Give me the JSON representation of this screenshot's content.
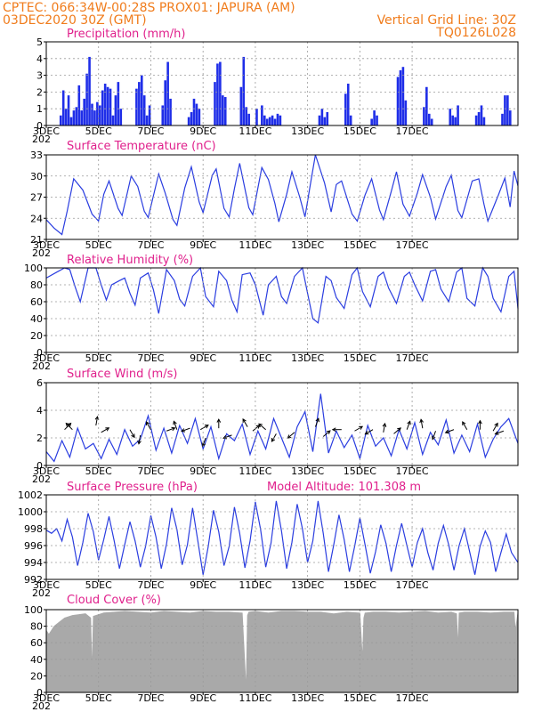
{
  "header": {
    "line1_left": "CPTEC:   066:34W-00:28S   PROX01: JAPURA (AM)",
    "line2_left": "03DEC2020 30Z (GMT)",
    "line1_right": "Vertical Grid Line: 30Z",
    "line2_right": "TQ0126L028"
  },
  "x_axis": {
    "tick_labels": [
      "3DEC",
      "5DEC",
      "7DEC",
      "9DEC",
      "11DEC",
      "13DEC",
      "15DEC",
      "17DEC"
    ],
    "year_fragment": "202"
  },
  "colors": {
    "line": "#2a3de0",
    "bar": "#1f2ee8",
    "cloud": "#a9a9a9",
    "header": "#f07c1c",
    "title": "#e0208c"
  },
  "chart_data": [
    {
      "type": "bar",
      "title": "Precipitation (mm/h)",
      "ylim": [
        0,
        5
      ],
      "y_ticks": [
        "0",
        "1",
        "2",
        "3",
        "4",
        "5"
      ],
      "grid": true,
      "x_days": [
        0.55,
        0.65,
        0.75,
        0.85,
        0.95,
        1.05,
        1.15,
        1.25,
        1.35,
        1.45,
        1.55,
        1.65,
        1.75,
        1.85,
        1.95,
        2.05,
        2.15,
        2.25,
        2.35,
        2.45,
        2.55,
        2.65,
        2.75,
        2.85,
        3.45,
        3.55,
        3.65,
        3.75,
        3.85,
        3.95,
        4.45,
        4.55,
        4.65,
        4.75,
        5.45,
        5.55,
        5.65,
        5.75,
        5.85,
        6.45,
        6.55,
        6.65,
        6.75,
        6.85,
        7.45,
        7.55,
        7.65,
        7.75,
        8.05,
        8.25,
        8.35,
        8.45,
        8.55,
        8.65,
        8.75,
        8.85,
        8.95,
        10.45,
        10.55,
        10.65,
        10.75,
        11.45,
        11.55,
        11.65,
        12.45,
        12.55,
        12.65,
        13.45,
        13.55,
        13.65,
        13.75,
        14.45,
        14.55,
        14.65,
        14.75,
        15.45,
        15.55,
        15.65,
        15.75,
        16.45,
        16.55,
        16.65,
        16.75,
        17.45,
        17.55,
        17.65,
        17.75
      ],
      "values": [
        0.6,
        2.1,
        1.0,
        1.8,
        0.5,
        0.9,
        1.1,
        2.4,
        0.9,
        1.6,
        3.1,
        4.1,
        1.3,
        0.9,
        1.4,
        1.2,
        2.1,
        2.5,
        2.3,
        2.2,
        0.6,
        1.8,
        2.6,
        1.0,
        2.2,
        2.6,
        3.0,
        1.8,
        0.6,
        1.2,
        1.2,
        2.7,
        3.8,
        1.6,
        0.5,
        0.8,
        1.6,
        1.3,
        1.0,
        2.6,
        3.7,
        3.8,
        1.8,
        1.7,
        2.3,
        4.1,
        1.1,
        0.7,
        1.0,
        1.2,
        0.6,
        0.4,
        0.5,
        0.6,
        0.4,
        0.7,
        0.6,
        0.6,
        1.0,
        0.5,
        0.8,
        1.9,
        2.5,
        0.6,
        0.4,
        0.9,
        0.6,
        2.9,
        3.3,
        3.5,
        1.5,
        1.1,
        2.3,
        0.7,
        0.4,
        1.0,
        0.6,
        0.5,
        1.2,
        0.6,
        0.8,
        1.2,
        0.5,
        0.7,
        1.8,
        1.8,
        0.9
      ]
    },
    {
      "type": "line",
      "title": "Surface Temperature (nC)",
      "ylim": [
        21,
        33
      ],
      "y_ticks": [
        "21",
        "24",
        "27",
        "30",
        "33"
      ],
      "grid": true,
      "x_days": [
        0.0,
        0.3,
        0.6,
        0.8,
        1.05,
        1.4,
        1.75,
        2.0,
        2.2,
        2.4,
        2.75,
        2.9,
        3.25,
        3.5,
        3.75,
        3.9,
        4.3,
        4.55,
        4.85,
        5.0,
        5.3,
        5.55,
        5.85,
        6.0,
        6.35,
        6.5,
        6.8,
        7.0,
        7.2,
        7.4,
        7.75,
        7.9,
        8.25,
        8.5,
        8.75,
        8.9,
        9.2,
        9.4,
        9.7,
        9.9,
        10.1,
        10.3,
        10.65,
        10.9,
        11.1,
        11.3,
        11.7,
        11.9,
        12.2,
        12.45,
        12.75,
        12.9,
        13.2,
        13.4,
        13.65,
        13.9,
        14.2,
        14.4,
        14.7,
        14.9,
        15.3,
        15.5,
        15.75,
        15.9,
        16.3,
        16.55,
        16.75,
        16.9,
        17.3,
        17.55,
        17.75,
        17.9,
        18.05
      ],
      "values": [
        23.8,
        22.6,
        21.7,
        25.0,
        29.6,
        28.0,
        24.6,
        23.6,
        27.4,
        29.3,
        25.4,
        24.4,
        30.0,
        28.5,
        25.0,
        24.1,
        30.3,
        27.6,
        23.8,
        23.0,
        28.3,
        31.3,
        26.3,
        24.8,
        30.1,
        31.0,
        25.4,
        24.2,
        28.2,
        31.8,
        25.5,
        24.5,
        31.2,
        29.5,
        26.1,
        23.5,
        27.4,
        30.6,
        27.0,
        24.2,
        28.7,
        33.0,
        29.0,
        24.9,
        28.8,
        29.3,
        24.6,
        23.6,
        27.3,
        29.6,
        25.2,
        23.8,
        27.8,
        30.6,
        26.0,
        24.3,
        27.6,
        30.2,
        27.0,
        23.9,
        28.5,
        30.1,
        25.1,
        24.1,
        29.3,
        29.6,
        26.0,
        23.6,
        27.3,
        29.7,
        25.6,
        30.7,
        28.6
      ]
    },
    {
      "type": "line",
      "title": "Relative Humidity (%)",
      "ylim": [
        0,
        100
      ],
      "y_ticks": [
        "0",
        "20",
        "40",
        "60",
        "80",
        "100"
      ],
      "grid": true,
      "x_days": [
        0.0,
        0.4,
        0.7,
        0.9,
        1.1,
        1.3,
        1.6,
        1.9,
        2.1,
        2.3,
        2.5,
        2.8,
        3.0,
        3.2,
        3.4,
        3.6,
        3.9,
        4.1,
        4.3,
        4.6,
        4.9,
        5.1,
        5.3,
        5.6,
        5.9,
        6.1,
        6.4,
        6.6,
        6.9,
        7.1,
        7.3,
        7.5,
        7.8,
        8.0,
        8.3,
        8.5,
        8.8,
        9.0,
        9.2,
        9.5,
        9.8,
        10.0,
        10.2,
        10.4,
        10.7,
        10.9,
        11.1,
        11.4,
        11.7,
        11.9,
        12.1,
        12.4,
        12.7,
        12.9,
        13.1,
        13.4,
        13.7,
        13.9,
        14.1,
        14.4,
        14.7,
        14.9,
        15.1,
        15.4,
        15.7,
        15.9,
        16.1,
        16.4,
        16.7,
        16.9,
        17.1,
        17.4,
        17.7,
        17.9,
        18.05
      ],
      "values": [
        88,
        95,
        100,
        98,
        78,
        60,
        100,
        100,
        80,
        62,
        80,
        85,
        88,
        70,
        56,
        88,
        94,
        74,
        46,
        98,
        85,
        63,
        55,
        90,
        100,
        66,
        54,
        96,
        85,
        62,
        48,
        92,
        94,
        80,
        44,
        80,
        90,
        66,
        58,
        90,
        100,
        70,
        40,
        35,
        90,
        85,
        65,
        52,
        92,
        100,
        72,
        54,
        90,
        95,
        76,
        58,
        90,
        95,
        80,
        61,
        96,
        98,
        75,
        60,
        95,
        100,
        64,
        55,
        100,
        90,
        64,
        48,
        90,
        96,
        52
      ]
    },
    {
      "type": "line",
      "title": "Surface Wind (m/s)",
      "ylim": [
        0,
        6
      ],
      "y_ticks": [
        "0",
        "2",
        "4",
        "6"
      ],
      "grid": true,
      "x_days": [
        0.0,
        0.3,
        0.6,
        0.9,
        1.2,
        1.5,
        1.8,
        2.1,
        2.4,
        2.7,
        3.0,
        3.3,
        3.6,
        3.9,
        4.2,
        4.5,
        4.8,
        5.1,
        5.4,
        5.7,
        6.0,
        6.3,
        6.6,
        6.9,
        7.2,
        7.5,
        7.8,
        8.1,
        8.4,
        8.7,
        9.0,
        9.3,
        9.6,
        9.9,
        10.2,
        10.5,
        10.8,
        11.1,
        11.4,
        11.7,
        12.0,
        12.3,
        12.6,
        12.9,
        13.2,
        13.5,
        13.8,
        14.1,
        14.4,
        14.7,
        15.0,
        15.3,
        15.6,
        15.9,
        16.2,
        16.5,
        16.8,
        17.1,
        17.4,
        17.7,
        18.05
      ],
      "values": [
        1.0,
        0.3,
        1.8,
        0.6,
        2.7,
        1.2,
        1.6,
        0.5,
        1.9,
        0.8,
        2.6,
        1.4,
        1.9,
        3.6,
        1.1,
        2.7,
        0.9,
        2.9,
        1.6,
        3.4,
        1.2,
        2.8,
        0.5,
        2.3,
        1.8,
        3.0,
        0.8,
        2.5,
        1.2,
        3.4,
        2.0,
        0.6,
        2.8,
        3.9,
        1.0,
        5.2,
        0.9,
        2.5,
        1.3,
        2.2,
        0.5,
        2.9,
        1.4,
        2.0,
        0.7,
        2.6,
        1.2,
        3.1,
        0.8,
        2.4,
        1.5,
        3.3,
        0.9,
        2.2,
        1.0,
        3.0,
        0.6,
        1.9,
        2.8,
        3.4,
        1.6
      ],
      "arrows_x_days": [
        0.7,
        1.0,
        1.9,
        2.1,
        3.2,
        3.6,
        4.0,
        4.6,
        5.0,
        5.5,
        5.9,
        6.1,
        6.6,
        7.1,
        7.7,
        7.9,
        8.4,
        8.8,
        9.5,
        10.3,
        10.6,
        11.3,
        11.8,
        12.5,
        12.9,
        13.3,
        13.8,
        14.4,
        14.9,
        15.6,
        16.1,
        16.6,
        17.1,
        17.5
      ],
      "arrows_y": [
        2.6,
        2.6,
        2.9,
        2.4,
        2.6,
        2.2,
        2.6,
        2.5,
        2.6,
        2.7,
        2.6,
        2.0,
        2.7,
        2.2,
        2.8,
        2.5,
        2.6,
        2.3,
        2.4,
        2.8,
        2.1,
        2.6,
        2.5,
        2.6,
        2.4,
        2.3,
        2.6,
        2.7,
        2.5,
        2.6,
        2.6,
        2.6,
        2.5,
        2.5
      ],
      "arrows_dir_deg": [
        45,
        135,
        80,
        30,
        -60,
        260,
        120,
        20,
        110,
        200,
        30,
        250,
        90,
        200,
        120,
        40,
        140,
        240,
        220,
        70,
        40,
        180,
        30,
        210,
        80,
        40,
        70,
        100,
        250,
        200,
        120,
        90,
        60,
        200
      ]
    },
    {
      "type": "line",
      "title": "Surface Pressure (hPa)",
      "annotation": "Model Altitude: 101.308  m",
      "ylim": [
        992,
        1003
      ],
      "y_ticks": [
        "992",
        "994",
        "996",
        "998",
        "1000",
        "1002"
      ],
      "grid": true,
      "x_days": [
        0.0,
        0.2,
        0.4,
        0.6,
        0.8,
        1.0,
        1.2,
        1.4,
        1.6,
        1.8,
        2.0,
        2.2,
        2.4,
        2.6,
        2.8,
        3.0,
        3.2,
        3.4,
        3.6,
        3.8,
        4.0,
        4.2,
        4.4,
        4.6,
        4.8,
        5.0,
        5.2,
        5.4,
        5.6,
        5.8,
        6.0,
        6.2,
        6.4,
        6.6,
        6.8,
        7.0,
        7.2,
        7.4,
        7.6,
        7.8,
        8.0,
        8.2,
        8.4,
        8.6,
        8.8,
        9.0,
        9.2,
        9.4,
        9.6,
        9.8,
        10.0,
        10.2,
        10.4,
        10.6,
        10.8,
        11.0,
        11.2,
        11.4,
        11.6,
        11.8,
        12.0,
        12.2,
        12.4,
        12.6,
        12.8,
        13.0,
        13.2,
        13.4,
        13.6,
        13.8,
        14.0,
        14.2,
        14.4,
        14.6,
        14.8,
        15.0,
        15.2,
        15.4,
        15.6,
        15.8,
        16.0,
        16.2,
        16.4,
        16.6,
        16.8,
        17.0,
        17.2,
        17.4,
        17.6,
        17.8,
        18.05
      ],
      "values": [
        998.4,
        998.0,
        998.6,
        997.0,
        999.8,
        997.5,
        993.8,
        996.8,
        1000.6,
        998.2,
        994.5,
        997.2,
        1000.2,
        997.0,
        993.4,
        996.5,
        999.5,
        997.0,
        993.6,
        996.3,
        1000.3,
        997.5,
        993.4,
        996.6,
        1001.3,
        998.5,
        993.9,
        996.5,
        1001.3,
        997.0,
        992.6,
        996.3,
        1001.0,
        998.2,
        993.8,
        996.3,
        1001.4,
        998.0,
        993.5,
        997.0,
        1002.1,
        998.5,
        993.6,
        996.7,
        1002.2,
        998.3,
        993.4,
        996.8,
        1001.8,
        998.6,
        994.2,
        997.0,
        1002.2,
        998.0,
        993.0,
        996.5,
        1000.4,
        997.2,
        993.0,
        996.3,
        1000.0,
        996.5,
        992.8,
        995.6,
        999.1,
        996.7,
        993.0,
        996.4,
        999.3,
        996.4,
        993.6,
        996.8,
        998.6,
        995.5,
        993.2,
        996.7,
        999.0,
        996.5,
        993.2,
        996.4,
        998.6,
        995.6,
        992.6,
        996.3,
        998.3,
        996.8,
        993.0,
        995.5,
        997.9,
        995.5,
        994.2
      ]
    },
    {
      "type": "area",
      "title": "Cloud Cover (%)",
      "ylim": [
        0,
        100
      ],
      "y_ticks": [
        "0",
        "20",
        "40",
        "60",
        "80",
        "100"
      ],
      "grid": true,
      "x_days": [
        0.0,
        0.1,
        0.3,
        0.5,
        0.7,
        1.0,
        1.5,
        1.7,
        1.75,
        1.8,
        2.2,
        2.6,
        3.0,
        3.5,
        4.0,
        4.5,
        5.0,
        5.5,
        6.0,
        6.5,
        7.0,
        7.5,
        7.65,
        7.7,
        7.75,
        8.0,
        8.5,
        9.0,
        9.5,
        10.0,
        10.5,
        11.0,
        11.5,
        12.0,
        12.1,
        12.15,
        12.2,
        12.5,
        13.0,
        13.5,
        14.0,
        14.5,
        15.0,
        15.5,
        15.7,
        15.75,
        15.8,
        16.0,
        16.5,
        17.0,
        17.5,
        17.9,
        17.95,
        18.05
      ],
      "values": [
        75,
        70,
        80,
        85,
        90,
        93,
        95,
        90,
        25,
        92,
        96,
        97,
        98,
        97,
        96,
        98,
        97,
        96,
        98,
        97,
        97,
        96,
        3,
        93,
        97,
        98,
        96,
        98,
        98,
        97,
        97,
        95,
        97,
        96,
        40,
        90,
        96,
        97,
        97,
        96,
        97,
        98,
        96,
        97,
        95,
        55,
        96,
        97,
        97,
        96,
        97,
        97,
        75,
        97
      ]
    }
  ]
}
